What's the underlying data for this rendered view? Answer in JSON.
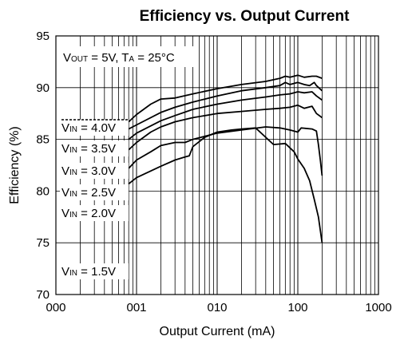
{
  "chart_data": {
    "type": "line",
    "title": "Efficiency vs. Output Current",
    "xlabel": "Output Current (mA)",
    "ylabel": "Efficiency (%)",
    "x_scale": "log",
    "xlim": [
      0.1,
      1000
    ],
    "ylim": [
      70,
      95
    ],
    "x_tick_labels": [
      "000",
      "001",
      "010",
      "100",
      "1000"
    ],
    "y_ticks": [
      70,
      75,
      80,
      85,
      90,
      95
    ],
    "grid": true,
    "conditions": {
      "vout_prefix": "V",
      "vout_sub": "OUT",
      "vout_value": " = 5V, T",
      "ta_sub": "A",
      "ta_value": " = 25°C"
    },
    "series": [
      {
        "name": "V IN = 4.0V",
        "label_prefix": "V",
        "label_sub": "IN",
        "label_value": " = 4.0V",
        "x": [
          0.8,
          1.0,
          1.5,
          2.0,
          3.0,
          5.0,
          10,
          20,
          40,
          60,
          70,
          80,
          100,
          120,
          150,
          170,
          200
        ],
        "y": [
          86.7,
          87.4,
          88.4,
          88.9,
          89.0,
          89.4,
          89.9,
          90.3,
          90.6,
          90.9,
          91.1,
          91.0,
          91.2,
          91.0,
          91.1,
          91.1,
          90.9
        ]
      },
      {
        "name": "V IN = 3.5V",
        "label_prefix": "V",
        "label_sub": "IN",
        "label_value": " = 3.5V",
        "x": [
          0.8,
          1.0,
          2.0,
          3.0,
          5.0,
          10,
          20,
          40,
          60,
          70,
          80,
          100,
          120,
          140,
          160,
          170,
          200
        ],
        "y": [
          86.0,
          86.4,
          87.6,
          88.1,
          88.6,
          89.2,
          89.7,
          90.0,
          90.2,
          90.5,
          90.3,
          90.5,
          90.3,
          90.2,
          90.5,
          90.2,
          89.7
        ]
      },
      {
        "name": "V IN = 3.0V",
        "label_prefix": "V",
        "label_sub": "IN",
        "label_value": " = 3.0V",
        "x": [
          0.8,
          1.0,
          2.0,
          3.0,
          5.0,
          10,
          20,
          40,
          60,
          80,
          100,
          120,
          150,
          170,
          200
        ],
        "y": [
          85.0,
          85.6,
          86.8,
          87.3,
          87.9,
          88.4,
          88.8,
          89.1,
          89.3,
          89.4,
          89.6,
          89.5,
          89.6,
          89.2,
          88.8
        ]
      },
      {
        "name": "V IN = 2.5V",
        "label_prefix": "V",
        "label_sub": "IN",
        "label_value": " = 2.5V",
        "x": [
          0.8,
          1.0,
          1.5,
          2.0,
          3.0,
          5.0,
          10,
          20,
          40,
          60,
          80,
          100,
          120,
          150,
          170,
          200
        ],
        "y": [
          84.0,
          84.7,
          85.7,
          86.2,
          86.7,
          87.1,
          87.5,
          87.7,
          87.9,
          88.0,
          88.1,
          88.3,
          88.0,
          88.2,
          87.5,
          87.1
        ]
      },
      {
        "name": "V IN = 2.0V",
        "label_prefix": "V",
        "label_sub": "IN",
        "label_value": " = 2.0V",
        "x": [
          0.8,
          1.0,
          1.5,
          2.0,
          3.0,
          4.0,
          5.0,
          10,
          20,
          40,
          60,
          80,
          100,
          110,
          150,
          170,
          180,
          190,
          200
        ],
        "y": [
          82.2,
          83.0,
          83.8,
          84.4,
          84.7,
          84.7,
          85.0,
          85.6,
          85.9,
          86.2,
          86.1,
          85.9,
          85.7,
          86.1,
          86.0,
          85.8,
          84.5,
          83.0,
          81.5
        ]
      },
      {
        "name": "V IN = 1.5V",
        "label_prefix": "V",
        "label_sub": "IN",
        "label_value": " = 1.5V",
        "x": [
          0.8,
          1.0,
          2.0,
          3.0,
          4.0,
          4.5,
          5.0,
          7.0,
          10,
          15,
          20,
          30,
          50,
          70,
          90,
          100,
          120,
          140,
          160,
          180,
          200
        ],
        "y": [
          80.7,
          81.3,
          82.4,
          83.0,
          83.3,
          83.4,
          84.3,
          85.2,
          85.7,
          85.9,
          86.0,
          86.1,
          84.5,
          84.6,
          83.8,
          83.1,
          82.2,
          81.0,
          79.2,
          77.5,
          75.0
        ]
      }
    ]
  }
}
